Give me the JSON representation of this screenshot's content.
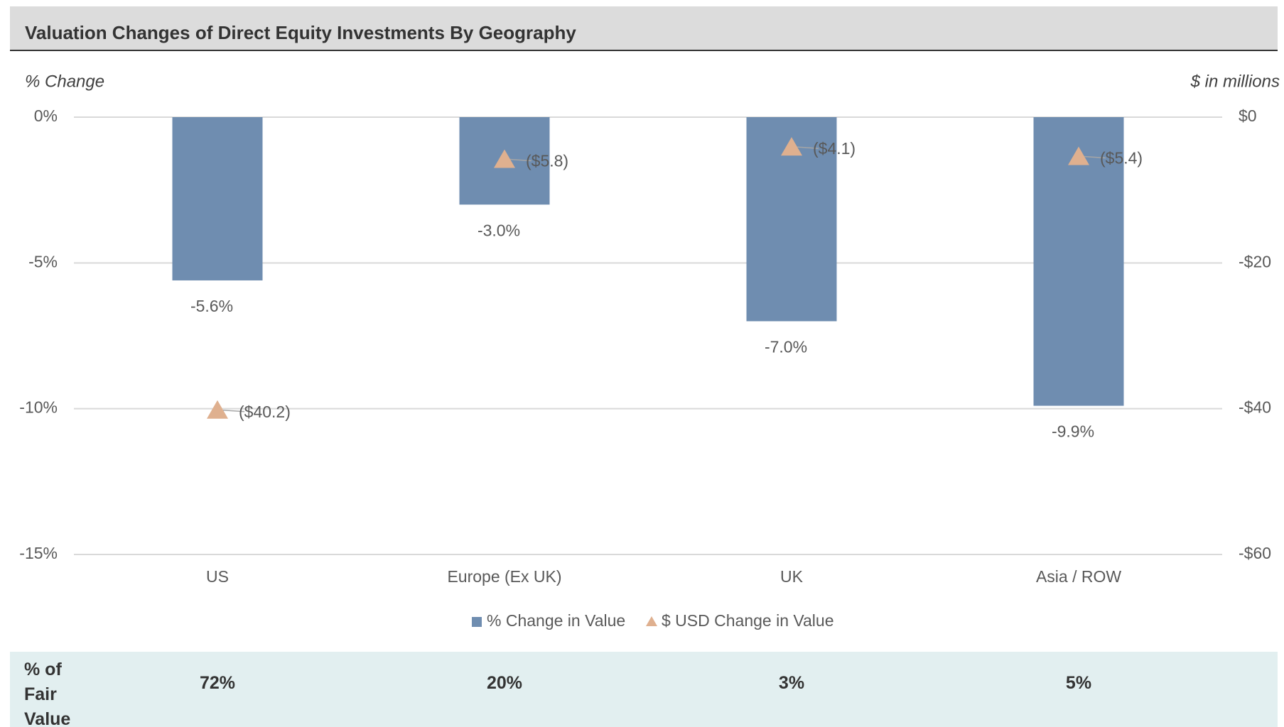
{
  "chart_data": {
    "type": "bar",
    "title": "Valuation Changes of Direct Equity Investments By Geography",
    "y_label": "% Change",
    "y2_label": "$ in millions",
    "categories": [
      "US",
      "Europe (Ex UK)",
      "UK",
      "Asia / ROW"
    ],
    "series": [
      {
        "name": "% Change in Value",
        "color": "#6f8db0",
        "values": [
          -5.6,
          -3.0,
          -7.0,
          -9.9
        ],
        "value_labels": [
          "-5.6%",
          "-3.0%",
          "-7.0%",
          "-9.9%"
        ]
      },
      {
        "name": "$ USD Change in Value",
        "color": "#dfb08f",
        "axis": "y2",
        "values": [
          -40.2,
          -5.8,
          -4.1,
          -5.4
        ],
        "value_labels": [
          "($40.2)",
          "($5.8)",
          "($4.1)",
          "($5.4)"
        ]
      }
    ],
    "ylim": [
      -15,
      0
    ],
    "yticks": [
      {
        "value": 0,
        "label": "0%"
      },
      {
        "value": -5,
        "label": "-5%"
      },
      {
        "value": -10,
        "label": "-10%"
      },
      {
        "value": -15,
        "label": "-15%"
      }
    ],
    "y2lim": [
      -60,
      0
    ],
    "y2ticks": [
      {
        "value": 0,
        "label": "$0"
      },
      {
        "value": -20,
        "label": "-$20"
      },
      {
        "value": -40,
        "label": "-$40"
      },
      {
        "value": -60,
        "label": "-$60"
      }
    ],
    "grid": true,
    "legend": "bottom",
    "table": {
      "header": "% of Fair Value",
      "values": [
        "72%",
        "20%",
        "3%",
        "5%"
      ]
    }
  }
}
